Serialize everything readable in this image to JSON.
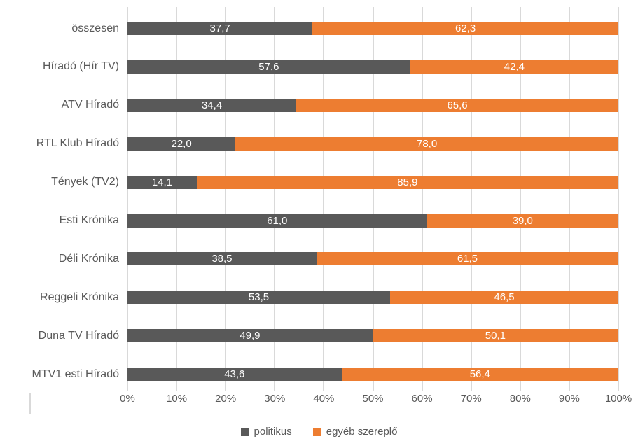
{
  "chart_data": {
    "type": "bar",
    "orientation": "horizontal",
    "stacked": true,
    "categories": [
      "összesen",
      "Híradó (Hír TV)",
      "ATV Híradó",
      "RTL Klub Híradó",
      "Tények (TV2)",
      "Esti Krónika",
      "Déli Krónika",
      "Reggeli Krónika",
      "Duna TV Híradó",
      "MTV1 esti Híradó"
    ],
    "series": [
      {
        "name": "politikus",
        "color": "#595959",
        "values": [
          37.7,
          57.6,
          34.4,
          22.0,
          14.1,
          61.0,
          38.5,
          53.5,
          49.9,
          43.6
        ],
        "labels": [
          "37,7",
          "57,6",
          "34,4",
          "22,0",
          "14,1",
          "61,0",
          "38,5",
          "53,5",
          "49,9",
          "43,6"
        ]
      },
      {
        "name": "egyéb szereplő",
        "color": "#ED7D31",
        "values": [
          62.3,
          42.4,
          65.6,
          78.0,
          85.9,
          39.0,
          61.5,
          46.5,
          50.1,
          56.4
        ],
        "labels": [
          "62,3",
          "42,4",
          "65,6",
          "78,0",
          "85,9",
          "39,0",
          "61,5",
          "46,5",
          "50,1",
          "56,4"
        ]
      }
    ],
    "xlim": [
      0,
      100
    ],
    "xticks": [
      "0%",
      "10%",
      "20%",
      "30%",
      "40%",
      "50%",
      "60%",
      "70%",
      "80%",
      "90%",
      "100%"
    ],
    "grid": true,
    "legend_position": "bottom",
    "colors": {
      "gridline": "#D9D9D9",
      "axis_text": "#595959",
      "bar_label": "#FFFFFF",
      "background": "#FFFFFF"
    }
  }
}
